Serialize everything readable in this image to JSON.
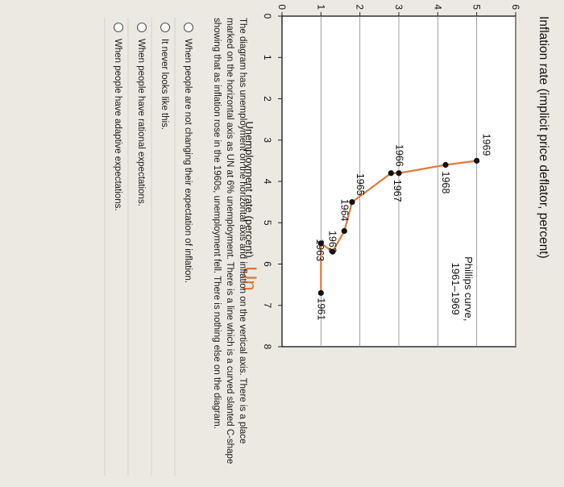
{
  "chart_data": {
    "type": "line",
    "title": "Inflation rate (implicit price deflator, percent)",
    "xlabel": "Unemployment rate (percent)",
    "x_handwritten": "Un",
    "xlim": [
      0,
      8
    ],
    "ylim": [
      0,
      6
    ],
    "x_ticks": [
      "0",
      "1",
      "2",
      "3",
      "4",
      "5",
      "6",
      "7",
      "8"
    ],
    "y_ticks": [
      "0",
      "1",
      "2",
      "3",
      "4",
      "5",
      "6"
    ],
    "series": [
      {
        "name": "Phillips curve, 1961–1969",
        "points": [
          {
            "year": "1961",
            "x": 6.7,
            "y": 1.0
          },
          {
            "year": "1962",
            "x": 5.5,
            "y": 1.0
          },
          {
            "year": "1963",
            "x": 5.7,
            "y": 1.3
          },
          {
            "year": "1964",
            "x": 5.2,
            "y": 1.6
          },
          {
            "year": "1965",
            "x": 4.5,
            "y": 1.8
          },
          {
            "year": "1966",
            "x": 3.8,
            "y": 2.8
          },
          {
            "year": "1967",
            "x": 3.8,
            "y": 3.0
          },
          {
            "year": "1968",
            "x": 3.6,
            "y": 4.2
          },
          {
            "year": "1969",
            "x": 3.5,
            "y": 5.0
          }
        ]
      }
    ],
    "legend_label": [
      "Phillips curve,",
      "1961–1969"
    ],
    "curve_color": "#e07a3a",
    "point_color": "#111111"
  },
  "description": "The diagram has unemployment on the horizontal axis and inflation on the vertical axis. There is a place marked on the horizontal axis as UN at 6% unemployment. There is a line which is a curved slanted C-shape showing that as inflation rose in the 1960s, unemployment fell. There is nothing else on the diagram.",
  "options": [
    "When people are not changing their expectation of inflation.",
    "It never looks like this.",
    "When people have rational expectations.",
    "When people have adaptive expectations."
  ]
}
